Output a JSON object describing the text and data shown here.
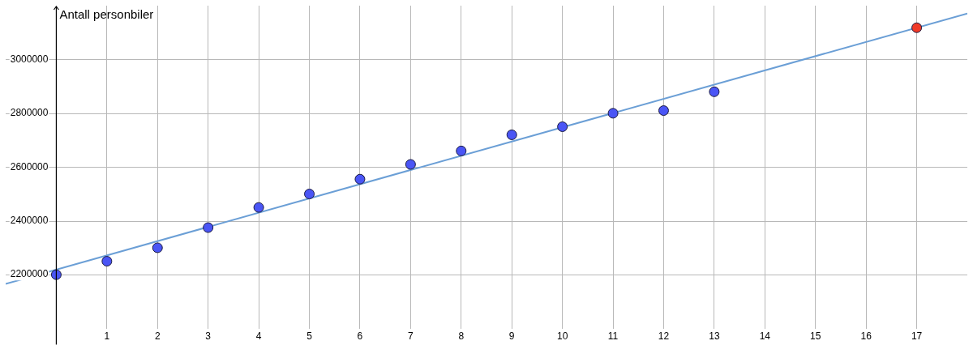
{
  "chart_data": {
    "type": "scatter",
    "ylabel": "Antall personbiler",
    "xlim": [
      -1,
      18
    ],
    "ylim": [
      2000000,
      3200000
    ],
    "xticks": [
      1,
      2,
      3,
      4,
      5,
      6,
      7,
      8,
      9,
      10,
      11,
      12,
      13,
      14,
      15,
      16,
      17
    ],
    "yticks": [
      2200000,
      2400000,
      2600000,
      2800000,
      3000000
    ],
    "grid": true,
    "legend": false,
    "marker": "circle",
    "series": [
      {
        "type": "line",
        "color": "#6b9fd6",
        "marker": "none",
        "x": [
          -1,
          18
        ],
        "values": [
          2166000,
          3171000
        ]
      },
      {
        "type": "scatter",
        "color": "#4a55f5",
        "x": [
          0,
          1,
          2,
          3,
          4,
          5,
          6,
          7,
          8,
          9,
          10,
          11,
          12,
          13
        ],
        "values": [
          2200000,
          2250000,
          2300000,
          2375000,
          2450000,
          2500000,
          2555000,
          2610000,
          2660000,
          2720000,
          2750000,
          2800000,
          2810000,
          2880000
        ]
      },
      {
        "type": "scatter",
        "color": "#f03a28",
        "x": [
          17
        ],
        "values": [
          3118000
        ]
      }
    ]
  }
}
